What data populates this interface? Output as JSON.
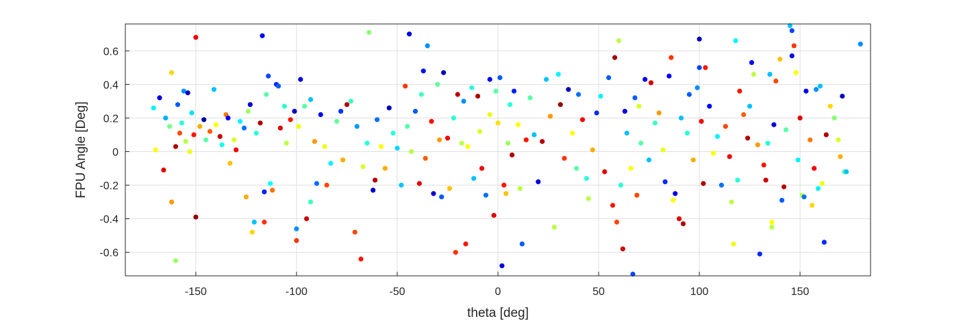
{
  "chart_data": {
    "type": "scatter",
    "title": "",
    "xlabel": "theta [deg]",
    "ylabel": "FPU Angle [Deg]",
    "xlim": [
      -185,
      185
    ],
    "ylim": [
      -0.74,
      0.76
    ],
    "xticks": [
      -150,
      -100,
      -50,
      0,
      50,
      100,
      150
    ],
    "xtick_labels": [
      "-150",
      "-100",
      "-50",
      "0",
      "50",
      "100",
      "150"
    ],
    "yticks": [
      -0.6,
      -0.4,
      -0.2,
      0,
      0.2,
      0.4,
      0.6
    ],
    "ytick_labels": [
      "-0.6",
      "-0.4",
      "-0.2",
      "0",
      "0.2",
      "0.4",
      "0.6"
    ],
    "grid": true,
    "colormap": "jet",
    "colormap_stops": [
      "#00008f",
      "#0000ff",
      "#00ffff",
      "#ffff00",
      "#ff0000",
      "#800000"
    ],
    "points": [
      [
        -171,
        0.26,
        0.35
      ],
      [
        -170,
        0.01,
        0.62
      ],
      [
        -168,
        0.32,
        0.08
      ],
      [
        -166,
        -0.11,
        0.9
      ],
      [
        -165,
        0.2,
        0.28
      ],
      [
        -163,
        0.15,
        0.48
      ],
      [
        -162,
        0.47,
        0.66
      ],
      [
        -162,
        -0.3,
        0.72
      ],
      [
        -160,
        0.03,
        0.95
      ],
      [
        -160,
        -0.65,
        0.52
      ],
      [
        -159,
        0.28,
        0.2
      ],
      [
        -158,
        0.11,
        0.8
      ],
      [
        -157,
        0.17,
        0.4
      ],
      [
        -156,
        0.36,
        0.25
      ],
      [
        -155,
        0.06,
        0.55
      ],
      [
        -154,
        0.35,
        0.05
      ],
      [
        -153,
        0.0,
        0.6
      ],
      [
        -152,
        0.23,
        0.33
      ],
      [
        -151,
        0.1,
        0.85
      ],
      [
        -150,
        0.68,
        0.88
      ],
      [
        -150,
        -0.39,
        0.98
      ],
      [
        -148,
        0.15,
        0.7
      ],
      [
        -146,
        0.19,
        0.02
      ],
      [
        -145,
        0.07,
        0.45
      ],
      [
        -143,
        0.12,
        0.78
      ],
      [
        -141,
        0.37,
        0.3
      ],
      [
        -140,
        0.16,
        0.62
      ],
      [
        -138,
        0.09,
        0.92
      ],
      [
        -137,
        0.04,
        0.38
      ],
      [
        -135,
        0.22,
        0.75
      ],
      [
        -134,
        0.2,
        0.1
      ],
      [
        -133,
        -0.07,
        0.68
      ],
      [
        -131,
        0.07,
        0.58
      ],
      [
        -130,
        0.01,
        0.88
      ],
      [
        -128,
        0.18,
        0.35
      ],
      [
        -126,
        0.14,
        0.22
      ],
      [
        -125,
        -0.27,
        0.7
      ],
      [
        -124,
        0.24,
        0.52
      ],
      [
        -123,
        0.28,
        0.07
      ],
      [
        -122,
        -0.48,
        0.66
      ],
      [
        -121,
        -0.42,
        0.3
      ],
      [
        -120,
        0.11,
        0.4
      ],
      [
        -118,
        0.17,
        0.95
      ],
      [
        -117,
        0.69,
        0.1
      ],
      [
        -116,
        -0.24,
        0.14
      ],
      [
        -116,
        -0.42,
        0.82
      ],
      [
        -115,
        0.34,
        0.45
      ],
      [
        -114,
        0.45,
        0.18
      ],
      [
        -113,
        -0.19,
        0.36
      ],
      [
        -112,
        -0.23,
        0.76
      ],
      [
        -110,
        0.4,
        0.15
      ],
      [
        -109,
        0.39,
        0.2
      ],
      [
        -108,
        0.14,
        0.9
      ],
      [
        -106,
        0.27,
        0.4
      ],
      [
        -105,
        0.05,
        0.55
      ],
      [
        -103,
        0.19,
        0.85
      ],
      [
        -101,
        0.24,
        0.05
      ],
      [
        -100,
        -0.53,
        0.82
      ],
      [
        -100,
        -0.46,
        0.25
      ],
      [
        -99,
        0.15,
        0.6
      ],
      [
        -98,
        0.43,
        0.08
      ],
      [
        -96,
        0.27,
        0.45
      ],
      [
        -95,
        -0.4,
        0.92
      ],
      [
        -93,
        -0.3,
        0.42
      ],
      [
        -93,
        0.31,
        0.3
      ],
      [
        -91,
        0.06,
        0.72
      ],
      [
        -90,
        -0.19,
        0.22
      ],
      [
        -88,
        0.22,
        0.1
      ],
      [
        -86,
        0.03,
        0.6
      ],
      [
        -85,
        -0.2,
        0.8
      ],
      [
        -83,
        -0.07,
        0.35
      ],
      [
        -80,
        0.18,
        0.46
      ],
      [
        -78,
        0.24,
        0.16
      ],
      [
        -77,
        -0.05,
        0.7
      ],
      [
        -75,
        0.28,
        0.95
      ],
      [
        -73,
        0.3,
        0.42
      ],
      [
        -71,
        -0.48,
        0.8
      ],
      [
        -70,
        0.15,
        0.26
      ],
      [
        -68,
        -0.64,
        0.85
      ],
      [
        -67,
        -0.09,
        0.58
      ],
      [
        -65,
        0.05,
        0.4
      ],
      [
        -64,
        0.71,
        0.5
      ],
      [
        -62,
        -0.23,
        0.06
      ],
      [
        -61,
        -0.17,
        0.95
      ],
      [
        -60,
        0.19,
        0.22
      ],
      [
        -58,
        0.03,
        0.62
      ],
      [
        -56,
        -0.1,
        0.7
      ],
      [
        -54,
        0.26,
        0.05
      ],
      [
        -52,
        0.11,
        0.4
      ],
      [
        -50,
        0.02,
        0.32
      ],
      [
        -48,
        -0.2,
        0.3
      ],
      [
        -46,
        0.39,
        0.82
      ],
      [
        -45,
        0.15,
        0.45
      ],
      [
        -44,
        0.7,
        0.08
      ],
      [
        -43,
        0.0,
        0.55
      ],
      [
        -41,
        0.24,
        0.2
      ],
      [
        -39,
        -0.19,
        0.9
      ],
      [
        -38,
        0.34,
        0.42
      ],
      [
        -37,
        0.48,
        0.12
      ],
      [
        -36,
        -0.04,
        0.78
      ],
      [
        -35,
        0.63,
        0.25
      ],
      [
        -33,
        0.18,
        0.86
      ],
      [
        -32,
        -0.25,
        0.06
      ],
      [
        -30,
        0.4,
        0.46
      ],
      [
        -29,
        0.07,
        0.72
      ],
      [
        -28,
        -0.27,
        0.2
      ],
      [
        -27,
        0.47,
        0.05
      ],
      [
        -25,
        0.08,
        0.88
      ],
      [
        -24,
        -0.22,
        0.68
      ],
      [
        -22,
        0.2,
        0.4
      ],
      [
        -21,
        -0.6,
        0.82
      ],
      [
        -20,
        0.34,
        0.94
      ],
      [
        -18,
        0.05,
        0.55
      ],
      [
        -17,
        0.3,
        0.25
      ],
      [
        -16,
        -0.55,
        0.85
      ],
      [
        -15,
        0.03,
        0.62
      ],
      [
        -13,
        0.38,
        0.4
      ],
      [
        -12,
        -0.16,
        0.3
      ],
      [
        -10,
        0.33,
        0.95
      ],
      [
        -9,
        0.12,
        0.58
      ],
      [
        -8,
        -0.1,
        0.88
      ],
      [
        -6,
        -0.26,
        0.22
      ],
      [
        -4,
        0.43,
        0.1
      ],
      [
        -4,
        0.22,
        0.6
      ],
      [
        -2,
        -0.38,
        0.9
      ],
      [
        -1,
        0.36,
        0.45
      ],
      [
        0,
        0.17,
        0.65
      ],
      [
        1,
        0.44,
        0.2
      ],
      [
        2,
        -0.68,
        0.08
      ],
      [
        3,
        -0.2,
        0.85
      ],
      [
        4,
        -0.25,
        0.68
      ],
      [
        5,
        0.05,
        0.52
      ],
      [
        6,
        0.28,
        0.4
      ],
      [
        7,
        -0.02,
        0.95
      ],
      [
        8,
        0.36,
        0.14
      ],
      [
        10,
        0.16,
        0.62
      ],
      [
        11,
        -0.22,
        0.55
      ],
      [
        12,
        -0.55,
        0.2
      ],
      [
        14,
        0.07,
        0.85
      ],
      [
        16,
        0.32,
        0.45
      ],
      [
        18,
        0.1,
        0.3
      ],
      [
        20,
        -0.18,
        0.08
      ],
      [
        22,
        0.06,
        0.95
      ],
      [
        24,
        0.43,
        0.3
      ],
      [
        26,
        0.21,
        0.72
      ],
      [
        28,
        -0.45,
        0.55
      ],
      [
        30,
        0.46,
        0.35
      ],
      [
        31,
        0.28,
        0.98
      ],
      [
        33,
        -0.04,
        0.82
      ],
      [
        35,
        0.37,
        0.05
      ],
      [
        37,
        0.11,
        0.62
      ],
      [
        39,
        -0.1,
        0.45
      ],
      [
        40,
        0.34,
        0.22
      ],
      [
        42,
        0.19,
        0.88
      ],
      [
        44,
        -0.16,
        0.4
      ],
      [
        45,
        -0.28,
        0.55
      ],
      [
        47,
        0.01,
        0.7
      ],
      [
        49,
        0.23,
        0.15
      ],
      [
        51,
        0.33,
        0.35
      ],
      [
        53,
        -0.12,
        0.9
      ],
      [
        55,
        0.44,
        0.2
      ],
      [
        57,
        -0.32,
        0.85
      ],
      [
        58,
        0.56,
        0.96
      ],
      [
        59,
        -0.42,
        0.8
      ],
      [
        60,
        0.66,
        0.55
      ],
      [
        61,
        -0.2,
        0.4
      ],
      [
        62,
        -0.58,
        0.92
      ],
      [
        63,
        0.24,
        0.08
      ],
      [
        64,
        0.11,
        0.3
      ],
      [
        66,
        -0.1,
        0.62
      ],
      [
        67,
        -0.73,
        0.18
      ],
      [
        68,
        0.32,
        0.2
      ],
      [
        69,
        -0.26,
        0.8
      ],
      [
        70,
        0.27,
        0.58
      ],
      [
        71,
        0.05,
        0.45
      ],
      [
        73,
        0.43,
        0.08
      ],
      [
        75,
        -0.05,
        0.3
      ],
      [
        76,
        0.41,
        0.92
      ],
      [
        78,
        0.17,
        0.42
      ],
      [
        80,
        0.23,
        0.72
      ],
      [
        82,
        0.01,
        0.6
      ],
      [
        83,
        -0.18,
        0.15
      ],
      [
        85,
        0.45,
        0.1
      ],
      [
        86,
        0.56,
        0.82
      ],
      [
        87,
        -0.29,
        0.62
      ],
      [
        88,
        -0.25,
        0.08
      ],
      [
        90,
        -0.4,
        0.9
      ],
      [
        91,
        0.2,
        0.3
      ],
      [
        92,
        -0.43,
        0.95
      ],
      [
        94,
        0.11,
        0.4
      ],
      [
        95,
        0.34,
        0.2
      ],
      [
        97,
        -0.05,
        0.7
      ],
      [
        99,
        0.38,
        0.25
      ],
      [
        100,
        0.5,
        0.18
      ],
      [
        100,
        0.67,
        0.05
      ],
      [
        101,
        0.18,
        0.88
      ],
      [
        102,
        -0.19,
        0.95
      ],
      [
        103,
        0.5,
        0.85
      ],
      [
        105,
        0.27,
        0.1
      ],
      [
        107,
        -0.01,
        0.62
      ],
      [
        109,
        0.09,
        0.35
      ],
      [
        111,
        -0.2,
        0.22
      ],
      [
        113,
        0.15,
        0.8
      ],
      [
        115,
        -0.03,
        0.88
      ],
      [
        116,
        -0.3,
        0.55
      ],
      [
        117,
        -0.55,
        0.6
      ],
      [
        118,
        0.66,
        0.35
      ],
      [
        119,
        -0.17,
        0.4
      ],
      [
        120,
        0.36,
        0.85
      ],
      [
        122,
        0.22,
        0.78
      ],
      [
        124,
        0.08,
        0.95
      ],
      [
        125,
        0.27,
        0.3
      ],
      [
        126,
        0.53,
        0.12
      ],
      [
        127,
        0.46,
        0.55
      ],
      [
        129,
        0.04,
        0.72
      ],
      [
        130,
        -0.61,
        0.15
      ],
      [
        132,
        -0.08,
        0.85
      ],
      [
        133,
        -0.17,
        0.92
      ],
      [
        134,
        0.05,
        0.4
      ],
      [
        135,
        0.46,
        0.3
      ],
      [
        136,
        -0.45,
        0.55
      ],
      [
        136,
        -0.42,
        0.62
      ],
      [
        137,
        0.16,
        0.08
      ],
      [
        138,
        0.42,
        0.8
      ],
      [
        140,
        0.55,
        0.68
      ],
      [
        141,
        -0.29,
        0.2
      ],
      [
        142,
        -0.21,
        0.94
      ],
      [
        143,
        0.13,
        0.45
      ],
      [
        145,
        0.75,
        0.3
      ],
      [
        146,
        0.72,
        0.18
      ],
      [
        146,
        0.57,
        0.12
      ],
      [
        147,
        0.63,
        0.82
      ],
      [
        148,
        0.47,
        0.62
      ],
      [
        149,
        -0.05,
        0.35
      ],
      [
        150,
        0.2,
        0.9
      ],
      [
        151,
        -0.26,
        0.55
      ],
      [
        152,
        -0.27,
        0.22
      ],
      [
        153,
        0.36,
        0.1
      ],
      [
        155,
        0.07,
        0.75
      ],
      [
        156,
        -0.32,
        0.66
      ],
      [
        157,
        -0.1,
        0.88
      ],
      [
        158,
        0.37,
        0.25
      ],
      [
        159,
        -0.22,
        0.35
      ],
      [
        160,
        0.39,
        0.3
      ],
      [
        161,
        -0.19,
        0.6
      ],
      [
        162,
        -0.54,
        0.15
      ],
      [
        163,
        0.1,
        0.95
      ],
      [
        165,
        0.27,
        0.66
      ],
      [
        167,
        0.2,
        0.5
      ],
      [
        169,
        0.07,
        0.58
      ],
      [
        170,
        -0.03,
        0.7
      ],
      [
        171,
        0.33,
        0.05
      ],
      [
        172,
        -0.12,
        0.45
      ],
      [
        173,
        -0.12,
        0.3
      ],
      [
        180,
        0.64,
        0.25
      ]
    ]
  }
}
